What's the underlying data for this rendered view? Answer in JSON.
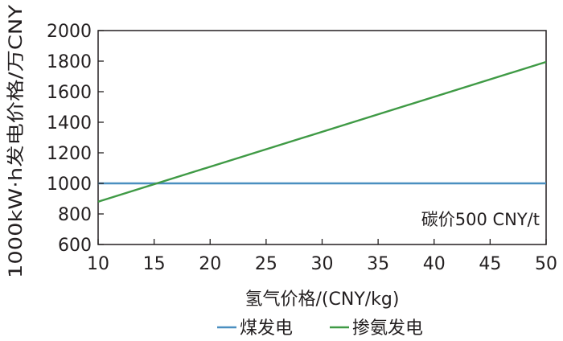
{
  "chart_data": {
    "type": "line",
    "xlabel": "氢气价格/(CNY/kg)",
    "ylabel": "1000kW·h发电价格/万CNY",
    "xlim": [
      10,
      50
    ],
    "ylim": [
      600,
      2000
    ],
    "xticks": [
      10,
      15,
      20,
      25,
      30,
      35,
      40,
      45,
      50
    ],
    "yticks": [
      600,
      800,
      1000,
      1200,
      1400,
      1600,
      1800,
      2000
    ],
    "annotation": "碳价500 CNY/t",
    "grid": false,
    "legend_position": "bottom",
    "series": [
      {
        "name": "煤发电",
        "color": "#4a8fc0",
        "x": [
          10,
          50
        ],
        "y": [
          1000,
          1000
        ]
      },
      {
        "name": "掺氨发电",
        "color": "#3f9a45",
        "x": [
          10,
          50
        ],
        "y": [
          880,
          1795
        ]
      }
    ]
  }
}
